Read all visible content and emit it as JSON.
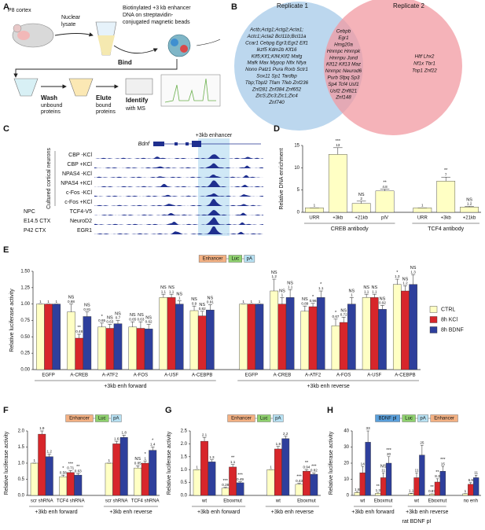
{
  "panel_a": {
    "panel": "A",
    "labels": [
      "P8 cortex",
      "Nuclear",
      "lysate",
      "Biotinylated +3 kb enhancer",
      "DNA on streptavidin-",
      "conjugated magnetic beads",
      "Bind",
      "Wash",
      "unbound",
      "proteins",
      "Elute",
      "bound",
      "proteins",
      "Identify",
      "with MS"
    ]
  },
  "panel_b": {
    "panel": "B",
    "titles": [
      "Replicate 1",
      "Replicate 2"
    ],
    "left": [
      "Actb;Actg1;Actg2;Acta1;",
      "Actc1;Acta2 Bcl11b;Bcl11a",
      "Ccar1 Cebpg Egr3;Egr2 Elf1",
      "Ikzf5 Kdm2b Klf16",
      "Klf5;Klf1;Klf4;Klf2 Mafg",
      "Mafk Max Mypop Nfix Nfya",
      "Nono Patz1 Pura Rorb Sctr1",
      "Sox11 Sp1 Tardbp",
      "Tbp;Tbpl2 Tfam Tfeb Znf236",
      "Znf281 Znf384 Znf652",
      "ZicS;Zic3;Zic1;Zic4",
      "Znf740"
    ],
    "middle": [
      "Cebpb",
      "Egr1",
      "Hmg20a",
      "Hnrnpc Hnrnpk",
      "Hnrnpu Jund",
      "Klf12 Klf13 Maz",
      "Nnrnpc Neurod6",
      "Purb Sfpq Sp3",
      "Sp4 Tcf4 Usf1",
      "Usf2 Znf821",
      "Znf148"
    ],
    "right": [
      "Hltf Lhx2",
      "Nf1x Tbr1",
      "Top1 Znf22"
    ]
  },
  "panel_c": {
    "panel": "C",
    "gene": "Bdnf",
    "enhancer": "+3kb enhancer",
    "group": "Cultured cortical neurons",
    "tracks": [
      "CBP -KCl",
      "CBP +KCl",
      "NPAS4 -KCl",
      "NPAS4 +KCl",
      "c-Fos -KCl",
      "c-Fos +KCl",
      "TCF4-V5",
      "NeuroD2",
      "EGR1"
    ],
    "sources": [
      "NPC",
      "E14.5 CTX",
      "P42 CTX"
    ]
  },
  "chart_data": [
    {
      "type": "bar",
      "panel": "D",
      "ylabel": "Relative DNA enrichment",
      "ylim": [
        0,
        15
      ],
      "yticks": [
        0,
        5,
        10,
        15
      ],
      "groups": [
        {
          "name": "CREB antibody",
          "categories": [
            "URR",
            "+3kb",
            "+21kb",
            "pIV"
          ]
        },
        {
          "name": "TCF4 antibody",
          "categories": [
            "URR",
            "+3kb",
            "+21kb"
          ]
        }
      ],
      "series": [
        {
          "color": "#ffffc4",
          "values": [
            1,
            13,
            2,
            4.8,
            1,
            7,
            1.2
          ],
          "errors": [
            0,
            1.5,
            0.5,
            0.4,
            0,
            0.9,
            0.15
          ],
          "sig": [
            null,
            "***",
            "NS",
            "**",
            null,
            "**",
            "NS"
          ]
        }
      ]
    },
    {
      "type": "bar",
      "panel": "E",
      "ylabel": "Relative luciferase activity",
      "legend": "right",
      "construct": [
        {
          "text": "Enhancer",
          "color": "#f4b183"
        },
        {
          "text": "Luc",
          "color": "#8fd16f"
        },
        {
          "text": "pA",
          "color": "#b7e1f3"
        }
      ],
      "ylim": [
        0,
        1.5
      ],
      "yticks": [
        {
          "value": 0,
          "label": "0.00"
        },
        0.25,
        {
          "value": 0.5,
          "label": "0.50"
        },
        0.75,
        {
          "value": 1,
          "label": "1.00"
        },
        1.25,
        {
          "value": 1.5,
          "label": "1.50"
        }
      ],
      "groups": [
        {
          "name": "+3kb enh forward",
          "categories": [
            "EGFP",
            "A-CREB",
            "A-ATF2",
            "A-FOS",
            "A-USF",
            "A-CEBPB"
          ]
        },
        {
          "name": "+3kb enh reverse",
          "categories": [
            "EGFP",
            "A-CREB",
            "A-ATF2",
            "A-FOS",
            "A-USF",
            "A-CEBPB"
          ]
        }
      ],
      "series": [
        {
          "name": "CTRL",
          "color": "#ffffc4",
          "values": [
            1,
            0.88,
            0.65,
            0.65,
            1.1,
            0.9,
            1,
            1.2,
            0.89,
            0.67,
            1.1,
            1.3
          ],
          "errors": [
            0,
            0.12,
            0.06,
            0.08,
            0.05,
            0.07,
            0,
            0.18,
            0.08,
            0.1,
            0.05,
            0.08
          ],
          "sig": [
            null,
            "NS",
            "*",
            "NS",
            "NS",
            "NS",
            null,
            "NS",
            "NS",
            "*",
            "NS",
            "*"
          ]
        },
        {
          "name": "8h KCl",
          "color": "#d7262b",
          "values": [
            1,
            0.48,
            0.63,
            0.63,
            1.1,
            0.82,
            1,
            1,
            0.96,
            0.72,
            1.1,
            1.2
          ],
          "errors": [
            0,
            0.06,
            0.06,
            0.1,
            0.05,
            0.07,
            0,
            0.1,
            0.05,
            0.08,
            0.05,
            0.08
          ],
          "sig": [
            null,
            "**",
            "NS",
            "NS",
            "NS",
            "NS",
            null,
            "NS",
            "*",
            "NS",
            "NS",
            "NS"
          ]
        },
        {
          "name": "8h BDNF",
          "color": "#2e3f9c",
          "values": [
            1,
            0.81,
            0.7,
            0.62,
            1,
            0.91,
            1,
            1.1,
            1.1,
            1,
            0.92,
            1.3
          ],
          "errors": [
            0,
            0.07,
            0.05,
            0.07,
            0.05,
            0.08,
            0,
            0.12,
            0.1,
            0.1,
            0.06,
            0.15
          ],
          "sig": [
            null,
            "NS",
            "NS",
            "NS",
            "NS",
            "NS",
            null,
            "NS",
            "*",
            "NS",
            "NS",
            "NS"
          ]
        }
      ]
    },
    {
      "type": "bar",
      "panel": "F",
      "ylabel": "Relative luciferase activity",
      "construct": [
        {
          "text": "Enhancer",
          "color": "#f4b183"
        },
        {
          "text": "Luc",
          "color": "#8fd16f"
        },
        {
          "text": "pA",
          "color": "#b7e1f3"
        }
      ],
      "ylim": [
        0,
        2
      ],
      "yticks": [
        {
          "value": 0,
          "label": "0.0"
        },
        0.5,
        {
          "value": 1,
          "label": "1.0"
        },
        1.5,
        {
          "value": 2,
          "label": "2.0"
        }
      ],
      "groups": [
        {
          "name": "+3kb enh forward",
          "categories": [
            "scr shRNA",
            "TCF4 shRNA"
          ]
        },
        {
          "name": "+3kb enh reverse",
          "categories": [
            "scr shRNA",
            "TCF4 shRNA"
          ]
        }
      ],
      "series": [
        {
          "color": "#ffffc4",
          "values": [
            1,
            0.58,
            1,
            0.85
          ],
          "errors": [
            0,
            0.05,
            0,
            0.07
          ],
          "sig": [
            null,
            "*",
            null,
            "NS"
          ]
        },
        {
          "color": "#d7262b",
          "values": [
            1.9,
            0.71,
            1.6,
            1
          ],
          "errors": [
            0.1,
            0.06,
            0.08,
            0.07
          ],
          "sig": [
            null,
            "***",
            null,
            "*"
          ]
        },
        {
          "color": "#2e3f9c",
          "values": [
            1.2,
            0.63,
            1.8,
            1.4
          ],
          "errors": [
            0.08,
            0.05,
            0.07,
            0.1
          ],
          "sig": [
            null,
            "**",
            null,
            "*"
          ]
        }
      ]
    },
    {
      "type": "bar",
      "panel": "G",
      "ylabel": "Relative luciferase activity",
      "construct": [
        {
          "text": "Enhancer",
          "color": "#f4b183"
        },
        {
          "text": "Luc",
          "color": "#8fd16f"
        },
        {
          "text": "pA",
          "color": "#b7e1f3"
        }
      ],
      "ylim": [
        0,
        2.5
      ],
      "yticks": [
        {
          "value": 0,
          "label": "0.0"
        },
        0.5,
        {
          "value": 1,
          "label": "1.0"
        },
        1.5,
        {
          "value": 2,
          "label": "2.0"
        },
        2.5
      ],
      "groups": [
        {
          "name": "+3kb enh forward",
          "categories": [
            "wt",
            "Eboxmut"
          ]
        },
        {
          "name": "+3kb enh reverse",
          "categories": [
            "wt",
            "Eboxmut"
          ]
        }
      ],
      "series": [
        {
          "color": "#ffffc4",
          "values": [
            1,
            0.28,
            1,
            0.43
          ],
          "errors": [
            0,
            0.03,
            0,
            0.04
          ],
          "sig": [
            null,
            "***",
            null,
            "***"
          ]
        },
        {
          "color": "#d7262b",
          "values": [
            2.1,
            1.1,
            1.8,
            0.94
          ],
          "errors": [
            0.15,
            0.1,
            0.1,
            0.06
          ],
          "sig": [
            null,
            "**",
            null,
            "**"
          ]
        },
        {
          "color": "#2e3f9c",
          "values": [
            1.3,
            0.49,
            2.2,
            0.82
          ],
          "errors": [
            0.08,
            0.04,
            0.1,
            0.05
          ],
          "sig": [
            null,
            "***",
            null,
            "***"
          ]
        }
      ]
    },
    {
      "type": "bar",
      "panel": "H",
      "ylabel": "Relative luciferase activity",
      "xlabel": "rat BDNF pI",
      "construct": [
        {
          "text": "BDNF pI",
          "color": "#5aa0dc"
        },
        {
          "text": "Luc",
          "color": "#8fd16f"
        },
        {
          "text": "pA",
          "color": "#b7e1f3"
        },
        {
          "text": "Enhancer",
          "color": "#f4b183"
        }
      ],
      "ylim": [
        0,
        40
      ],
      "yticks": [
        0,
        10,
        20,
        30,
        40
      ],
      "groups": [
        {
          "name": "+3kb enh forward",
          "categories": [
            "wt",
            "Eboxmut"
          ]
        },
        {
          "name": "+3kb enh reverse",
          "categories": [
            "wt",
            "Eboxmut"
          ]
        },
        {
          "categories": [
            "no enh"
          ]
        }
      ],
      "series": [
        {
          "color": "#ffffc4",
          "values": [
            1.8,
            1.3,
            1.1,
            0.87,
            1
          ],
          "errors": [
            0.3,
            0.2,
            0.2,
            0.1,
            0.1
          ],
          "sig": [
            null,
            "**",
            null,
            "**",
            null
          ]
        },
        {
          "color": "#d7262b",
          "values": [
            14,
            11,
            11,
            8.3,
            6.9
          ],
          "errors": [
            4,
            3,
            3,
            2,
            1
          ],
          "sig": [
            null,
            "NS",
            null,
            "**",
            null
          ]
        },
        {
          "color": "#2e3f9c",
          "values": [
            33,
            20,
            25,
            15,
            11
          ],
          "errors": [
            7,
            4,
            6,
            3,
            1.5
          ],
          "sig": [
            null,
            "***",
            null,
            "***",
            null
          ]
        }
      ]
    }
  ]
}
